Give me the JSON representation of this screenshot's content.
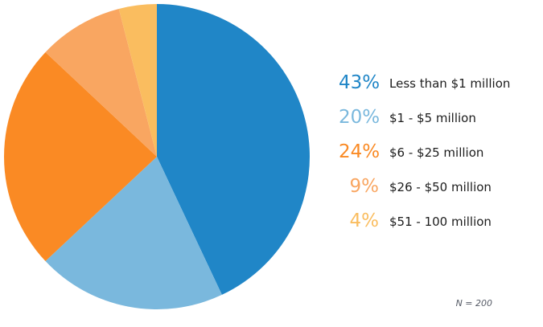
{
  "chart_data": {
    "type": "pie",
    "title": "",
    "start_angle_deg": 0,
    "direction": "clockwise",
    "legend_position": "right",
    "note": "N = 200",
    "categories": [
      "Less than $1 million",
      "$1 - $5 million",
      "$6 - $25 million",
      "$26 - $50 million",
      "$51 - 100 million"
    ],
    "values": [
      43,
      20,
      24,
      9,
      4
    ],
    "slices": [
      {
        "label": "Less than $1 million",
        "value": 43,
        "percent_text": "43%",
        "color": "#2086C7"
      },
      {
        "label": "$1 - $5 million",
        "value": 20,
        "percent_text": "20%",
        "color": "#7AB8DD"
      },
      {
        "label": "$6 - $25 million",
        "value": 24,
        "percent_text": "24%",
        "color": "#FA8A24"
      },
      {
        "label": "$26 - $50 million",
        "value": 9,
        "percent_text": "9%",
        "color": "#F9A661"
      },
      {
        "label": "$51 - 100 million",
        "value": 4,
        "percent_text": "4%",
        "color": "#FABD5F"
      }
    ],
    "colors": {
      "label_text": "#1c1c1c",
      "note_text": "#565b66",
      "background": "#ffffff"
    }
  }
}
